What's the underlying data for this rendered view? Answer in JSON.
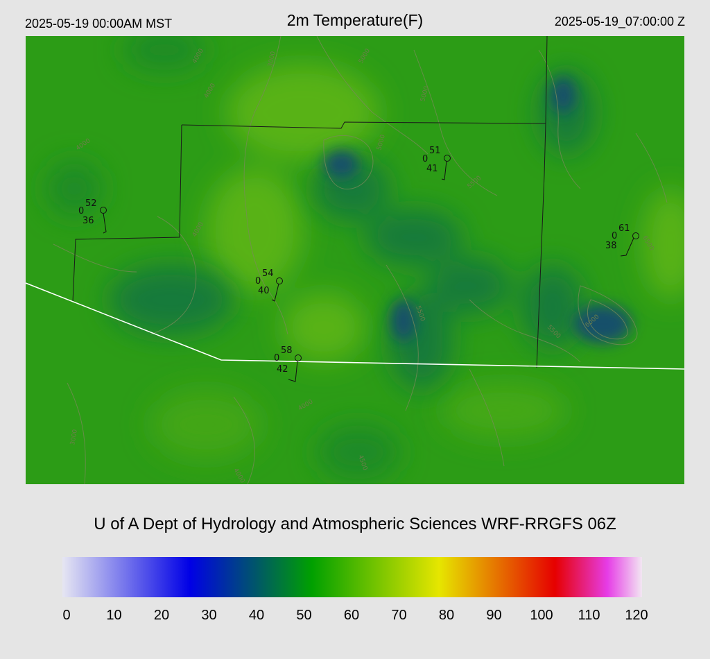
{
  "header": {
    "local_time": "2025-05-19 00:00AM MST",
    "title": "2m Temperature(F)",
    "utc_time": "2025-05-19_07:00:00 Z"
  },
  "credit": "U of A Dept of Hydrology and Atmospheric Sciences WRF-RRGFS 06Z",
  "colorbar": {
    "ticks": [
      "0",
      "10",
      "20",
      "30",
      "40",
      "50",
      "60",
      "70",
      "80",
      "90",
      "100",
      "110",
      "120"
    ],
    "range": [
      0,
      120
    ],
    "colors": [
      "#e6e6f2",
      "#0000e6",
      "#00a000",
      "#e6e600",
      "#e60000",
      "#e63ce6",
      "#f2e6f2"
    ]
  },
  "stations": [
    {
      "temp": "52",
      "wind": "0",
      "dew": "36"
    },
    {
      "temp": "51",
      "wind": "0",
      "dew": "41"
    },
    {
      "temp": "54",
      "wind": "0",
      "dew": "40"
    },
    {
      "temp": "58",
      "wind": "0",
      "dew": "42"
    },
    {
      "temp": "61",
      "wind": "0",
      "dew": "38"
    }
  ],
  "contour_labels": [
    "3000",
    "3000",
    "4000",
    "4000",
    "4000",
    "4000",
    "4000",
    "4000",
    "4500",
    "5000",
    "5000",
    "5000",
    "5500",
    "5500",
    "5500",
    "6000",
    "6500"
  ],
  "colors": {
    "background": "#e5e5e5",
    "county_border": "#1a1a1a",
    "state_border": "#ffffff",
    "terrain_contour": "#7a8a5a"
  }
}
